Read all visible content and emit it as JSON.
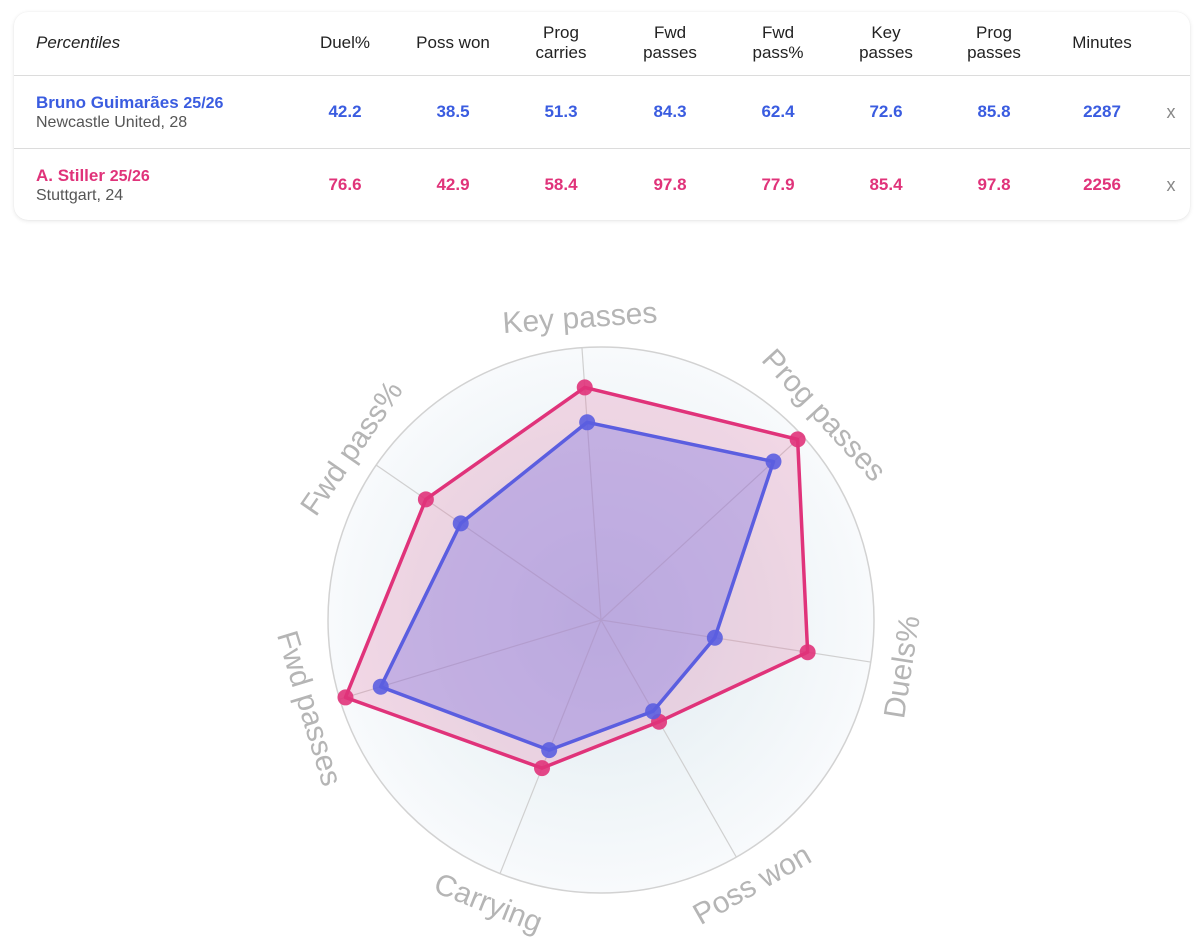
{
  "table": {
    "header_label": "Percentiles",
    "columns": [
      "Duel%",
      "Poss won",
      "Prog\ncarries",
      "Fwd\npasses",
      "Fwd\npass%",
      "Key\npasses",
      "Prog\npasses",
      "Minutes"
    ],
    "players": [
      {
        "name": "Bruno Guimarães",
        "season": "25/26",
        "club_age": "Newcastle United, 28",
        "values": [
          "42.2",
          "38.5",
          "51.3",
          "84.3",
          "62.4",
          "72.6",
          "85.8",
          "2287"
        ],
        "remove_label": "x",
        "color": "#3a5ce0"
      },
      {
        "name": "A. Stiller",
        "season": "25/26",
        "club_age": "Stuttgart, 24",
        "values": [
          "76.6",
          "42.9",
          "58.4",
          "97.8",
          "77.9",
          "85.4",
          "97.8",
          "2256"
        ],
        "remove_label": "x",
        "color": "#e0337a"
      }
    ]
  },
  "chart_data": {
    "type": "radar",
    "axes": [
      "Key passes",
      "Prog passes",
      "Duels%",
      "Poss won",
      "Carrying",
      "Fwd passes",
      "Fwd pass%"
    ],
    "range": [
      0,
      100
    ],
    "series": [
      {
        "name": "Bruno Guimarães 25/26",
        "color": "#5b5ee0",
        "values": [
          72.6,
          85.8,
          42.2,
          38.5,
          51.3,
          84.3,
          62.4
        ]
      },
      {
        "name": "A. Stiller 25/26",
        "color": "#e0337a",
        "values": [
          85.4,
          97.8,
          76.6,
          42.9,
          58.4,
          97.8,
          77.9
        ]
      }
    ]
  }
}
